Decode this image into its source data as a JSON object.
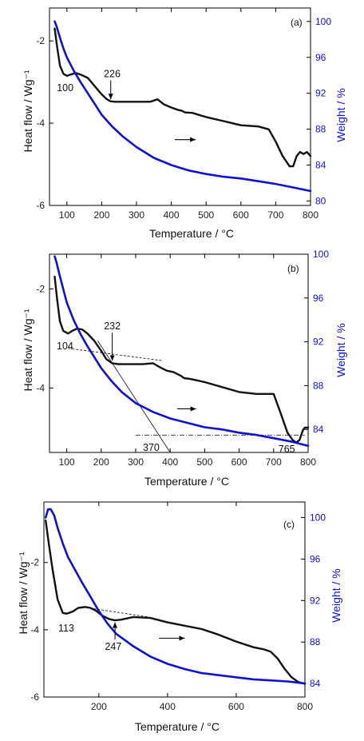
{
  "colors": {
    "heat_flow": "#111111",
    "weight": "#1010d0",
    "axis": "#000000",
    "guide": "#222222"
  },
  "chart_data": [
    {
      "type": "line",
      "panel": "(a)",
      "xlabel": "Temperature / °C",
      "ylabel_left": "Heat flow / Wg⁻¹",
      "ylabel_right": "Weight / %",
      "xlim": [
        50,
        800
      ],
      "ylim_left": [
        -6,
        -1.2
      ],
      "ylim_right": [
        79.5,
        101.5
      ],
      "xticks": [
        100,
        200,
        300,
        400,
        500,
        600,
        700,
        800
      ],
      "yticks_left": [
        -2,
        -4,
        -6
      ],
      "yticks_right": [
        80,
        84,
        88,
        92,
        96,
        100
      ],
      "series": [
        {
          "key": "heat_flow",
          "axis": "left",
          "x": [
            65,
            72,
            80,
            90,
            100,
            110,
            125,
            140,
            160,
            180,
            200,
            215,
            226,
            240,
            260,
            300,
            340,
            360,
            380,
            400,
            420,
            430,
            440,
            460,
            500,
            550,
            600,
            650,
            680,
            700,
            720,
            740,
            750,
            760,
            770,
            780,
            790,
            800
          ],
          "y": [
            -1.7,
            -2.15,
            -2.6,
            -2.8,
            -2.85,
            -2.82,
            -2.78,
            -2.82,
            -2.9,
            -3.1,
            -3.3,
            -3.42,
            -3.47,
            -3.48,
            -3.48,
            -3.48,
            -3.48,
            -3.42,
            -3.55,
            -3.62,
            -3.68,
            -3.7,
            -3.74,
            -3.75,
            -3.85,
            -3.95,
            -4.05,
            -4.08,
            -4.15,
            -4.45,
            -4.8,
            -5.05,
            -5.05,
            -4.8,
            -4.7,
            -4.75,
            -4.7,
            -4.8
          ]
        },
        {
          "key": "weight",
          "axis": "right",
          "x": [
            65,
            70,
            80,
            90,
            100,
            120,
            140,
            160,
            180,
            200,
            230,
            260,
            300,
            350,
            400,
            450,
            500,
            550,
            600,
            650,
            700,
            750,
            800
          ],
          "y": [
            100,
            99.5,
            98.2,
            97.0,
            96.0,
            94.5,
            93.2,
            92.0,
            90.8,
            89.6,
            88.3,
            87.2,
            86.0,
            84.8,
            84.0,
            83.4,
            83.0,
            82.7,
            82.5,
            82.2,
            81.9,
            81.5,
            81.1
          ]
        }
      ],
      "annotations": [
        {
          "text": "100",
          "x": 95,
          "y": -3.22,
          "side": "left"
        },
        {
          "text": "226",
          "x": 230,
          "y": -2.88,
          "side": "left",
          "arrow_to": [
            226,
            -3.42
          ]
        }
      ],
      "arrow": {
        "from": [
          410,
          -4.4
        ],
        "to": [
          470,
          -4.4
        ],
        "side": "left"
      },
      "guides": []
    },
    {
      "type": "line",
      "panel": "(b)",
      "xlabel": "Temperature / °C",
      "ylabel_left": "Heat flow / Wg⁻¹",
      "ylabel_right": "Weight / %",
      "xlim": [
        50,
        800
      ],
      "ylim_left": [
        -5.3,
        -1.3
      ],
      "ylim_right": [
        81.9,
        100
      ],
      "xticks": [
        100,
        200,
        300,
        400,
        500,
        600,
        700,
        800
      ],
      "yticks_left": [
        -2,
        -4
      ],
      "yticks_right": [
        84,
        88,
        92,
        96,
        100
      ],
      "series": [
        {
          "key": "heat_flow",
          "axis": "left",
          "x": [
            65,
            72,
            80,
            90,
            104,
            115,
            130,
            145,
            160,
            180,
            200,
            215,
            232,
            250,
            280,
            320,
            350,
            370,
            390,
            410,
            430,
            440,
            460,
            500,
            550,
            600,
            650,
            700,
            720,
            740,
            755,
            765,
            775,
            785,
            790,
            800
          ],
          "y": [
            -1.75,
            -2.2,
            -2.65,
            -2.85,
            -2.9,
            -2.85,
            -2.8,
            -2.82,
            -2.9,
            -3.05,
            -3.25,
            -3.42,
            -3.5,
            -3.52,
            -3.52,
            -3.52,
            -3.5,
            -3.58,
            -3.65,
            -3.68,
            -3.75,
            -3.8,
            -3.82,
            -3.88,
            -3.98,
            -4.08,
            -4.12,
            -4.12,
            -4.5,
            -4.9,
            -5.05,
            -5.1,
            -5.05,
            -4.85,
            -4.8,
            -4.8
          ]
        },
        {
          "key": "weight",
          "axis": "right",
          "x": [
            65,
            70,
            80,
            90,
            100,
            120,
            140,
            160,
            180,
            200,
            230,
            260,
            300,
            350,
            400,
            450,
            500,
            550,
            600,
            650,
            700,
            750,
            800
          ],
          "y": [
            99.8,
            99.3,
            98.0,
            96.8,
            95.6,
            94.0,
            92.7,
            91.6,
            90.6,
            89.6,
            88.4,
            87.4,
            86.4,
            85.6,
            85.0,
            84.6,
            84.2,
            84.0,
            83.7,
            83.5,
            83.2,
            82.9,
            82.5
          ]
        }
      ],
      "annotations": [
        {
          "text": "104",
          "x": 95,
          "y": -3.22,
          "side": "left"
        },
        {
          "text": "232",
          "x": 232,
          "y": -2.82,
          "side": "left",
          "arrow_to": [
            232,
            -3.45
          ]
        },
        {
          "text": "370",
          "x": 345,
          "y": -5.27,
          "side": "left"
        },
        {
          "text": "765",
          "x": 738,
          "y": -5.3,
          "side": "left"
        }
      ],
      "arrow": {
        "from": [
          420,
          -4.42
        ],
        "to": [
          475,
          -4.42
        ],
        "side": "left"
      },
      "guides": [
        {
          "style": "dash",
          "from": [
            104,
            -3.2
          ],
          "to": [
            380,
            -3.45
          ],
          "side": "left"
        },
        {
          "style": "solid",
          "from": [
            190,
            -3.05
          ],
          "to": [
            400,
            -5.3
          ],
          "side": "left"
        },
        {
          "style": "dashdot",
          "from": [
            300,
            -4.95
          ],
          "to": [
            790,
            -4.95
          ],
          "side": "left"
        }
      ]
    },
    {
      "type": "line",
      "panel": "(c)",
      "xlabel": "Temperature / °C",
      "ylabel_left": "Heat flow / Wg⁻¹",
      "ylabel_right": "Weight / %",
      "xlim": [
        40,
        800
      ],
      "ylim_left": [
        -6,
        -0.2
      ],
      "ylim_right": [
        82.7,
        101.5
      ],
      "xticks": [
        200,
        400,
        600,
        800
      ],
      "yticks_left": [
        -2,
        -4,
        -6
      ],
      "yticks_right": [
        84,
        88,
        92,
        96,
        100
      ],
      "series": [
        {
          "key": "heat_flow",
          "axis": "left",
          "x": [
            45,
            55,
            65,
            80,
            95,
            105,
            113,
            125,
            140,
            160,
            175,
            190,
            210,
            230,
            247,
            265,
            300,
            350,
            400,
            450,
            500,
            550,
            600,
            650,
            680,
            700,
            720,
            740,
            760,
            780,
            790,
            800
          ],
          "y": [
            -0.75,
            -1.5,
            -2.2,
            -3.1,
            -3.5,
            -3.52,
            -3.5,
            -3.45,
            -3.35,
            -3.32,
            -3.35,
            -3.42,
            -3.58,
            -3.68,
            -3.72,
            -3.7,
            -3.62,
            -3.65,
            -3.78,
            -3.88,
            -3.98,
            -4.15,
            -4.35,
            -4.52,
            -4.58,
            -4.65,
            -4.85,
            -5.15,
            -5.4,
            -5.55,
            -5.58,
            -5.6
          ]
        },
        {
          "key": "weight",
          "axis": "right",
          "x": [
            45,
            52,
            60,
            70,
            80,
            95,
            110,
            130,
            150,
            175,
            200,
            225,
            250,
            300,
            350,
            400,
            450,
            500,
            550,
            600,
            650,
            700,
            750,
            800
          ],
          "y": [
            100.0,
            100.8,
            100.8,
            100.2,
            99.0,
            97.5,
            96.2,
            95.0,
            93.8,
            92.4,
            91.0,
            89.8,
            88.8,
            87.6,
            86.6,
            85.9,
            85.4,
            85.0,
            84.8,
            84.6,
            84.4,
            84.3,
            84.2,
            84.0
          ]
        }
      ],
      "annotations": [
        {
          "text": "113",
          "x": 105,
          "y": -4.05,
          "side": "left"
        },
        {
          "text": "247",
          "x": 242,
          "y": -4.6,
          "side": "left",
          "arrow_to": [
            247,
            -3.78
          ],
          "arrow_up": true
        }
      ],
      "arrow": {
        "from": [
          375,
          -4.25
        ],
        "to": [
          450,
          -4.25
        ],
        "side": "left"
      },
      "guides": [
        {
          "style": "dash",
          "from": [
            150,
            -3.32
          ],
          "to": [
            345,
            -3.62
          ],
          "side": "left"
        }
      ]
    }
  ]
}
